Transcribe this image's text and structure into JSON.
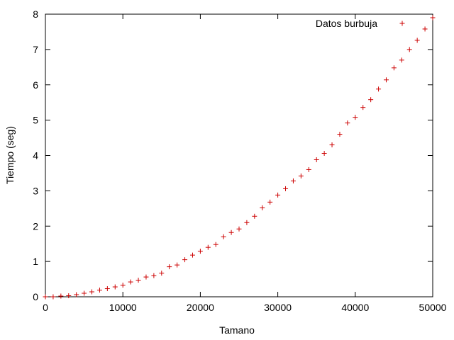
{
  "chart_data": {
    "type": "scatter",
    "xlabel": "Tamano",
    "ylabel": "Tiempo (seg)",
    "xlim": [
      0,
      50000
    ],
    "ylim": [
      0,
      8
    ],
    "xticks": [
      0,
      10000,
      20000,
      30000,
      40000,
      50000
    ],
    "yticks": [
      0,
      1,
      2,
      3,
      4,
      5,
      6,
      7,
      8
    ],
    "grid": false,
    "legend_position": "top-right",
    "series": [
      {
        "name": "Datos burbuja",
        "color": "#cc0000",
        "marker": "plus",
        "x": [
          0,
          1000,
          2000,
          3000,
          4000,
          5000,
          6000,
          7000,
          8000,
          9000,
          10000,
          11000,
          12000,
          13000,
          14000,
          15000,
          16000,
          17000,
          18000,
          19000,
          20000,
          21000,
          22000,
          23000,
          24000,
          25000,
          26000,
          27000,
          28000,
          29000,
          30000,
          31000,
          32000,
          33000,
          34000,
          35000,
          36000,
          37000,
          38000,
          39000,
          40000,
          41000,
          42000,
          43000,
          44000,
          45000,
          46000,
          47000,
          48000,
          49000,
          50000
        ],
        "y": [
          0.0,
          0.0,
          0.02,
          0.03,
          0.06,
          0.1,
          0.14,
          0.19,
          0.23,
          0.28,
          0.33,
          0.42,
          0.47,
          0.56,
          0.6,
          0.67,
          0.85,
          0.9,
          1.05,
          1.18,
          1.29,
          1.4,
          1.48,
          1.7,
          1.82,
          1.92,
          2.1,
          2.28,
          2.52,
          2.68,
          2.88,
          3.06,
          3.28,
          3.42,
          3.6,
          3.88,
          4.06,
          4.3,
          4.6,
          4.92,
          5.08,
          5.36,
          5.58,
          5.88,
          6.14,
          6.48,
          6.7,
          7.0,
          7.26,
          7.58,
          7.9
        ]
      }
    ]
  }
}
